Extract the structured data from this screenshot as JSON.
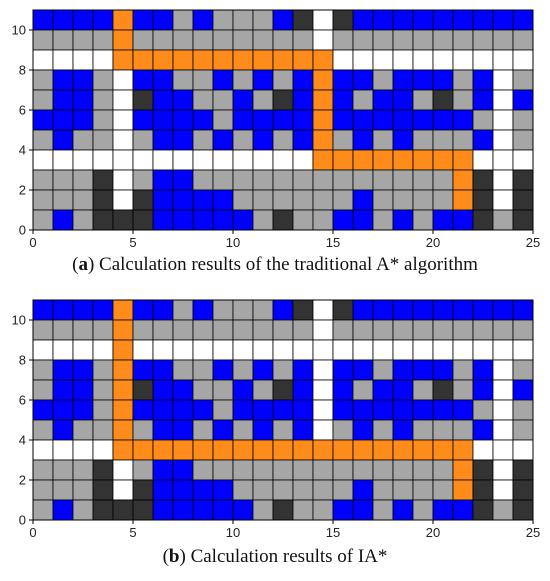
{
  "colors": {
    "blue": "#0000ff",
    "gray": "#a6a6a6",
    "white": "#ffffff",
    "black": "#333333",
    "orange": "#ff8c1a",
    "grid_line": "#000000"
  },
  "legend_codes": {
    "B": "blue",
    "G": "gray",
    "W": "white",
    "K": "black",
    "O": "orange"
  },
  "chart_data": [
    {
      "type": "heatmap",
      "caption_letter": "a",
      "caption_rest": ") Calculation results of the traditional A* algorithm",
      "xlim": [
        0,
        25
      ],
      "ylim": [
        0,
        11
      ],
      "xticks": [
        0,
        5,
        10,
        15,
        20,
        25
      ],
      "yticks": [
        0,
        2,
        4,
        6,
        8,
        10
      ],
      "rows_top_to_bottom": [
        "BBBBOBBGBGGGBKWKBBBBBBBBB",
        "GGGGOGGGGGGGGGWGGGGGGGGGG",
        "WWWWOOOOOOOOOOOWWWWWWWWWW",
        "GBBGWBBGGBGBGBOBBGBBBGBWG",
        "GBBGWKBBGGBGKBOBGBBGKGBWB",
        "BBBGWBBBBGBBBBOBBBBBBBGWG",
        "GBGGWGBBGBGBGBOGBGBGGGBWG",
        "WWWWWWWWWWWWWWOOOOOOOOWWW",
        "GGGKWGBBGGGGGGGGGGGGGOKWK",
        "GGGKWKBBBBGGGGGGBGGGGOKWK",
        "GBGKKKBBBBBGKGGBBGBGBBKGK"
      ]
    },
    {
      "type": "heatmap",
      "caption_letter": "b",
      "caption_rest": ") Calculation results of IA*",
      "xlim": [
        0,
        25
      ],
      "ylim": [
        0,
        11
      ],
      "xticks": [
        0,
        5,
        10,
        15,
        20,
        25
      ],
      "yticks": [
        0,
        2,
        4,
        6,
        8,
        10
      ],
      "rows_top_to_bottom": [
        "BBBBOBBGBGGGBKWKBBBBBBBBB",
        "GGGGOGGGGGGGGGWGGGGGGGGGG",
        "WWWWOWWWWWWWWWWWWWWWWWWWW",
        "GBBGOBBGGBGBGBWBBGBBBGBWG",
        "GBBGOKBBGGBGKBWBGBBGKGBWB",
        "BBBGOBBBBGBBBBWBBBBBBBGWG",
        "GBGGOGBBGBGBGBWGBGBGGGBWG",
        "WWWWOOOOOOOOOOOOOOOOOOWWW",
        "GGGKWGBBGGGGGGGGGGGGGOKWK",
        "GGGKWKBBBBGGGGGGBGGGGOKWK",
        "GBGKKKBBBBBGKGGBBGBGBBKGK"
      ]
    }
  ]
}
